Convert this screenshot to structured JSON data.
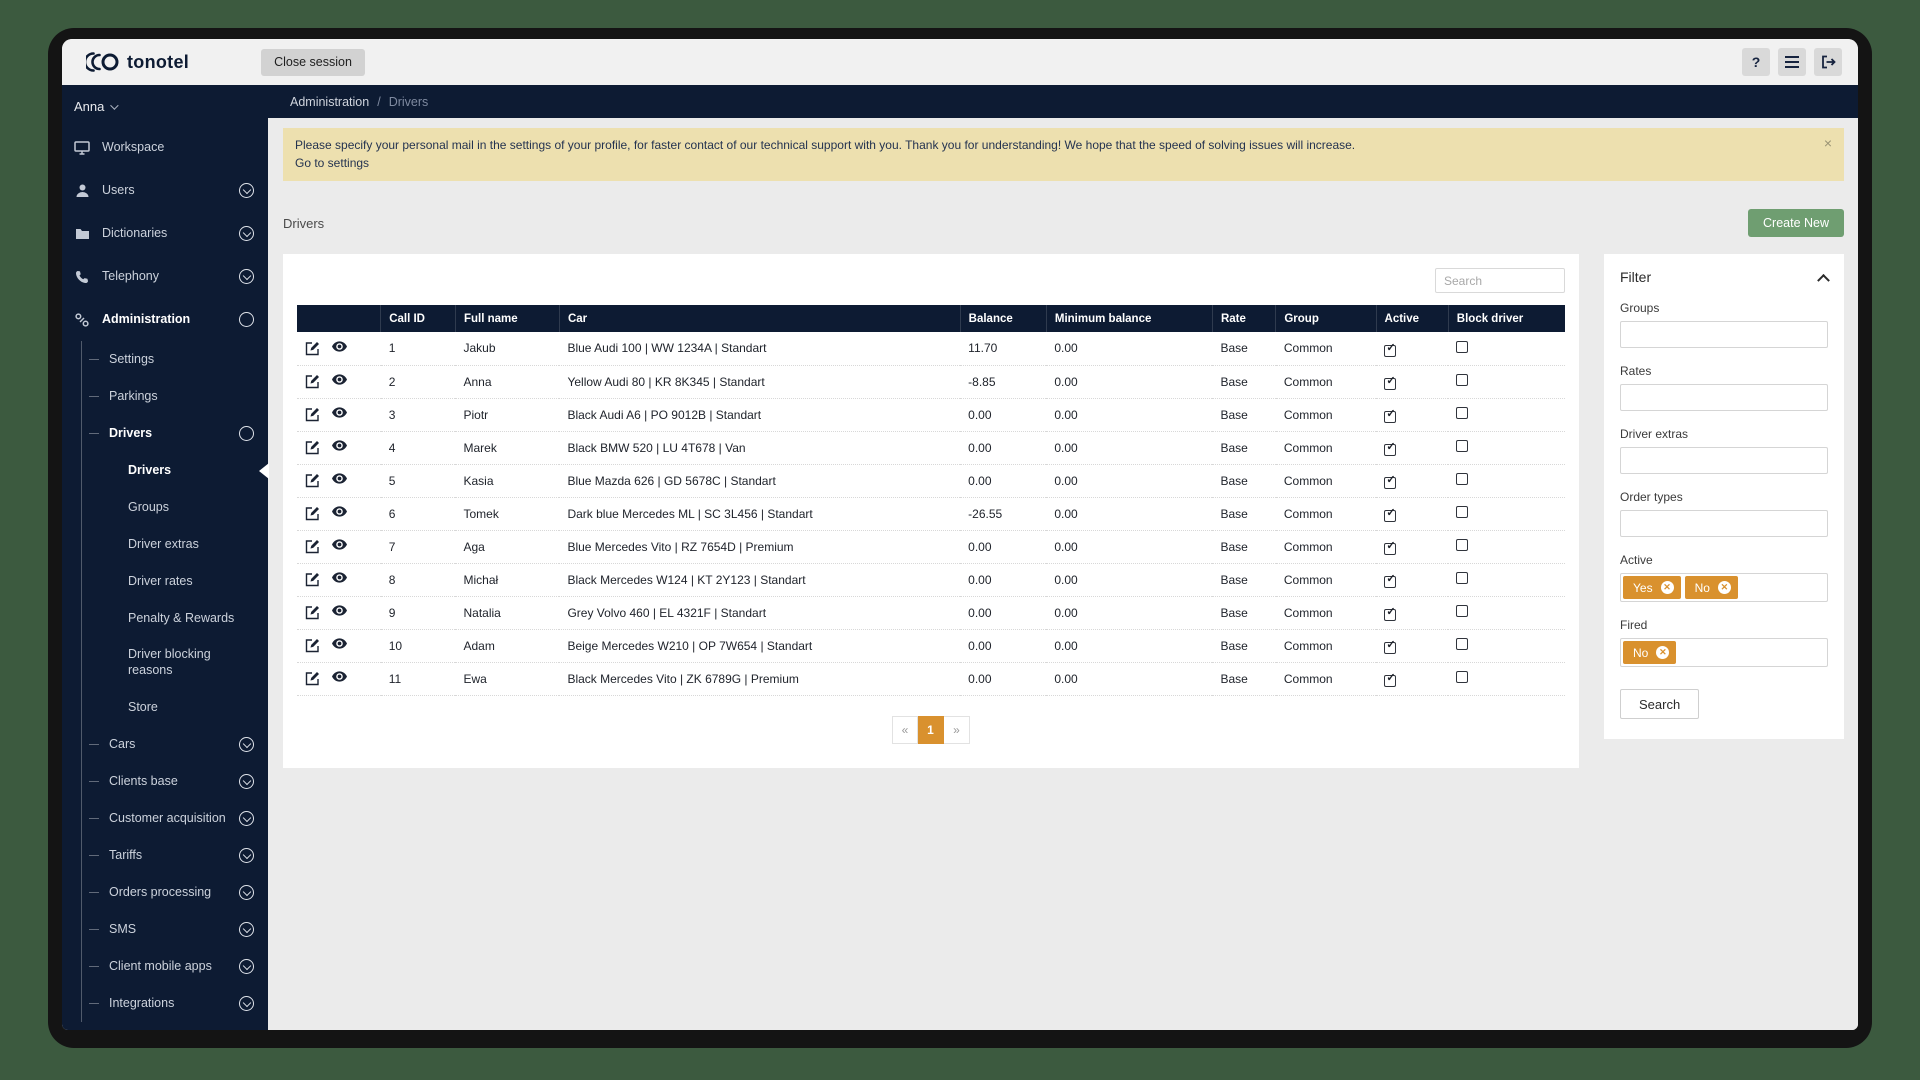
{
  "app": {
    "brand": "tonotel",
    "close_session_label": "Close session",
    "help_glyph": "?"
  },
  "user": {
    "name": "Anna"
  },
  "breadcrumb": {
    "parent": "Administration",
    "separator": "/",
    "current": "Drivers"
  },
  "banner": {
    "message": "Please specify your personal mail in the settings of your profile, for faster contact of our technical support with you. Thank you for understanding! We hope that the speed of solving issues will increase.",
    "link": "Go to settings",
    "close_label": "×"
  },
  "page": {
    "title": "Drivers",
    "create_button": "Create New"
  },
  "sidebar": {
    "items": [
      {
        "label": "Workspace",
        "icon": "monitor-icon"
      },
      {
        "label": "Users",
        "icon": "user-icon",
        "indicator": "collapsed"
      },
      {
        "label": "Dictionaries",
        "icon": "folder-icon",
        "indicator": "collapsed"
      },
      {
        "label": "Telephony",
        "icon": "phone-icon",
        "indicator": "collapsed"
      },
      {
        "label": "Administration",
        "icon": "link-icon",
        "indicator": "expanded",
        "open": true,
        "children": [
          {
            "label": "Settings"
          },
          {
            "label": "Parkings"
          },
          {
            "label": "Drivers",
            "indicator": "expanded",
            "open": true,
            "children": [
              {
                "label": "Drivers",
                "active": true
              },
              {
                "label": "Groups"
              },
              {
                "label": "Driver extras"
              },
              {
                "label": "Driver rates"
              },
              {
                "label": "Penalty & Rewards"
              },
              {
                "label": "Driver blocking reasons",
                "wrap": true
              },
              {
                "label": "Store"
              }
            ]
          },
          {
            "label": "Cars",
            "indicator": "collapsed"
          },
          {
            "label": "Clients base",
            "indicator": "collapsed"
          },
          {
            "label": "Customer acquisition",
            "indicator": "collapsed"
          },
          {
            "label": "Tariffs",
            "indicator": "collapsed"
          },
          {
            "label": "Orders processing",
            "indicator": "collapsed"
          },
          {
            "label": "SMS",
            "indicator": "collapsed"
          },
          {
            "label": "Client mobile apps",
            "indicator": "collapsed"
          },
          {
            "label": "Integrations",
            "indicator": "collapsed"
          }
        ]
      }
    ]
  },
  "table": {
    "search_placeholder": "Search",
    "columns": [
      "",
      "Call ID",
      "Full name",
      "Car",
      "Balance",
      "Minimum balance",
      "Rate",
      "Group",
      "Active",
      "Block driver"
    ],
    "row_action_icons": [
      "edit-icon",
      "view-icon"
    ],
    "rows": [
      {
        "call_id": "1",
        "full_name": "Jakub",
        "car": "Blue Audi 100 | WW 1234A | Standart",
        "balance": "11.70",
        "min_balance": "0.00",
        "rate": "Base",
        "group": "Common",
        "active": true,
        "block_driver": false
      },
      {
        "call_id": "2",
        "full_name": "Anna",
        "car": "Yellow Audi 80 | KR 8K345 | Standart",
        "balance": "-8.85",
        "min_balance": "0.00",
        "rate": "Base",
        "group": "Common",
        "active": true,
        "block_driver": false
      },
      {
        "call_id": "3",
        "full_name": "Piotr",
        "car": "Black Audi A6 | PO 9012B | Standart",
        "balance": "0.00",
        "min_balance": "0.00",
        "rate": "Base",
        "group": "Common",
        "active": true,
        "block_driver": false
      },
      {
        "call_id": "4",
        "full_name": "Marek",
        "car": "Black BMW 520 | LU 4T678 | Van",
        "balance": "0.00",
        "min_balance": "0.00",
        "rate": "Base",
        "group": "Common",
        "active": true,
        "block_driver": false
      },
      {
        "call_id": "5",
        "full_name": "Kasia",
        "car": "Blue Mazda 626 | GD 5678C | Standart",
        "balance": "0.00",
        "min_balance": "0.00",
        "rate": "Base",
        "group": "Common",
        "active": true,
        "block_driver": false
      },
      {
        "call_id": "6",
        "full_name": "Tomek",
        "car": "Dark blue Mercedes ML | SC 3L456 | Standart",
        "balance": "-26.55",
        "min_balance": "0.00",
        "rate": "Base",
        "group": "Common",
        "active": true,
        "block_driver": false
      },
      {
        "call_id": "7",
        "full_name": "Aga",
        "car": "Blue Mercedes Vito | RZ 7654D | Premium",
        "balance": "0.00",
        "min_balance": "0.00",
        "rate": "Base",
        "group": "Common",
        "active": true,
        "block_driver": false
      },
      {
        "call_id": "8",
        "full_name": "Michał",
        "car": "Black Mercedes W124 | KT 2Y123 | Standart",
        "balance": "0.00",
        "min_balance": "0.00",
        "rate": "Base",
        "group": "Common",
        "active": true,
        "block_driver": false
      },
      {
        "call_id": "9",
        "full_name": "Natalia",
        "car": "Grey Volvo 460 | EL 4321F | Standart",
        "balance": "0.00",
        "min_balance": "0.00",
        "rate": "Base",
        "group": "Common",
        "active": true,
        "block_driver": false
      },
      {
        "call_id": "10",
        "full_name": "Adam",
        "car": "Beige Mercedes W210 | OP 7W654 | Standart",
        "balance": "0.00",
        "min_balance": "0.00",
        "rate": "Base",
        "group": "Common",
        "active": true,
        "block_driver": false
      },
      {
        "call_id": "11",
        "full_name": "Ewa",
        "car": "Black Mercedes Vito | ZK 6789G | Premium",
        "balance": "0.00",
        "min_balance": "0.00",
        "rate": "Base",
        "group": "Common",
        "active": true,
        "block_driver": false
      }
    ],
    "pagination": {
      "prev": "«",
      "pages": [
        "1"
      ],
      "current": "1",
      "next": "»"
    }
  },
  "filter": {
    "title": "Filter",
    "fields": [
      {
        "label": "Groups",
        "tags": []
      },
      {
        "label": "Rates",
        "tags": []
      },
      {
        "label": "Driver extras",
        "tags": []
      },
      {
        "label": "Order types",
        "tags": []
      },
      {
        "label": "Active",
        "tags": [
          "Yes",
          "No"
        ]
      },
      {
        "label": "Fired",
        "tags": [
          "No"
        ]
      }
    ],
    "search_button": "Search"
  },
  "colors": {
    "navy": "#0d1b33",
    "accent_orange": "#d9912e",
    "create_green": "#6f9e71",
    "banner_bg": "#ede0af",
    "desktop_green": "#3c5a3f"
  }
}
